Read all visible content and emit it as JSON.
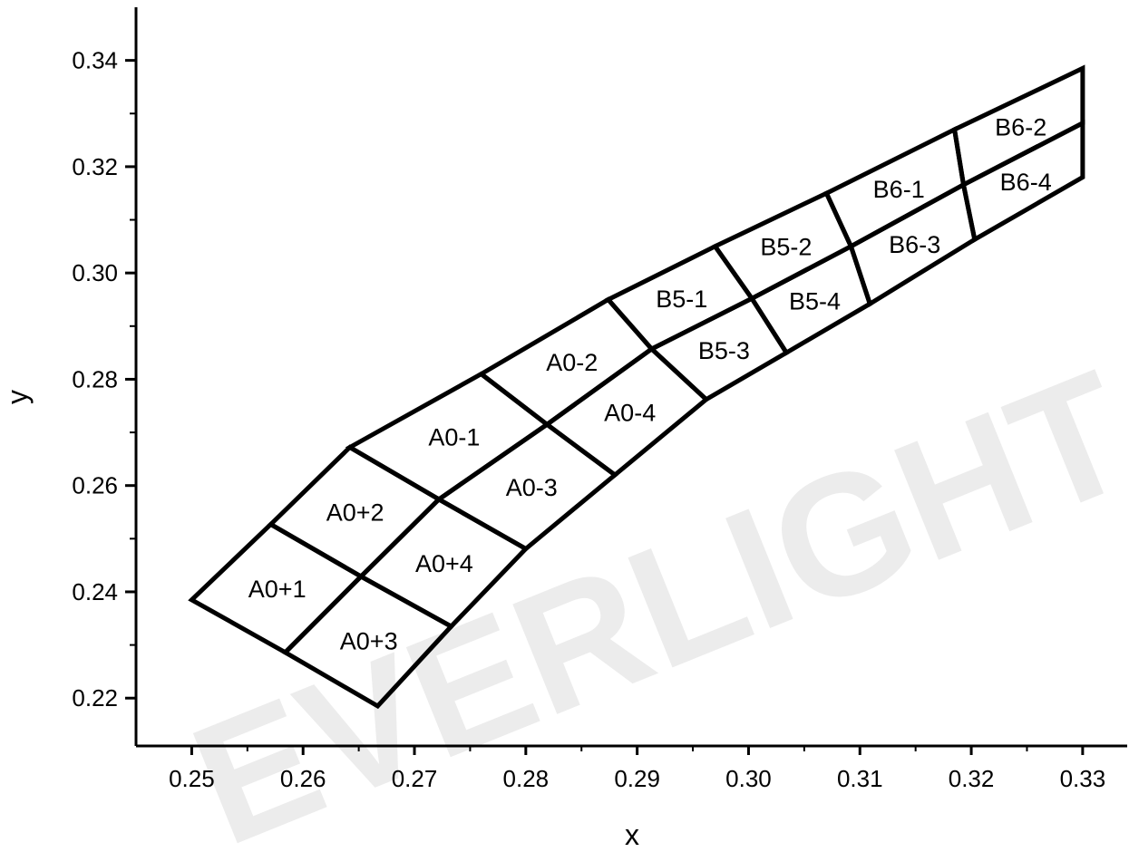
{
  "chart_data": {
    "type": "diagram",
    "xlabel": "x",
    "ylabel": "y",
    "xlim": [
      0.245,
      0.334
    ],
    "ylim": [
      0.211,
      0.35
    ],
    "x_ticks": [
      "0.25",
      "0.26",
      "0.27",
      "0.28",
      "0.29",
      "0.30",
      "0.31",
      "0.32",
      "0.33"
    ],
    "y_ticks": [
      "0.22",
      "0.24",
      "0.26",
      "0.28",
      "0.30",
      "0.32",
      "0.34"
    ],
    "watermark": "EVERLIGHT",
    "regions": [
      {
        "label": "A0+1",
        "corners": [
          [
            0.25,
            0.2385
          ],
          [
            0.2571,
            0.2527
          ],
          [
            0.2652,
            0.2429
          ],
          [
            0.2584,
            0.2286
          ]
        ]
      },
      {
        "label": "A0+2",
        "corners": [
          [
            0.2571,
            0.2527
          ],
          [
            0.2642,
            0.2672
          ],
          [
            0.2722,
            0.2574
          ],
          [
            0.2652,
            0.2429
          ]
        ]
      },
      {
        "label": "A0+3",
        "corners": [
          [
            0.2584,
            0.2286
          ],
          [
            0.2652,
            0.2429
          ],
          [
            0.2733,
            0.2335
          ],
          [
            0.2667,
            0.2185
          ]
        ]
      },
      {
        "label": "A0+4",
        "corners": [
          [
            0.2652,
            0.2429
          ],
          [
            0.2722,
            0.2574
          ],
          [
            0.28,
            0.2481
          ],
          [
            0.2733,
            0.2335
          ]
        ]
      },
      {
        "label": "A0-1",
        "corners": [
          [
            0.2642,
            0.2672
          ],
          [
            0.276,
            0.281
          ],
          [
            0.2819,
            0.2715
          ],
          [
            0.2722,
            0.2574
          ]
        ]
      },
      {
        "label": "A0-2",
        "corners": [
          [
            0.276,
            0.281
          ],
          [
            0.2874,
            0.295
          ],
          [
            0.2913,
            0.2857
          ],
          [
            0.2819,
            0.2715
          ]
        ]
      },
      {
        "label": "A0-3",
        "corners": [
          [
            0.2722,
            0.2574
          ],
          [
            0.2819,
            0.2715
          ],
          [
            0.288,
            0.262
          ],
          [
            0.28,
            0.2481
          ]
        ]
      },
      {
        "label": "A0-4",
        "corners": [
          [
            0.2819,
            0.2715
          ],
          [
            0.2913,
            0.2857
          ],
          [
            0.2962,
            0.2762
          ],
          [
            0.288,
            0.262
          ]
        ]
      },
      {
        "label": "B5-1",
        "corners": [
          [
            0.2874,
            0.295
          ],
          [
            0.297,
            0.305
          ],
          [
            0.3003,
            0.2952
          ],
          [
            0.2913,
            0.2857
          ]
        ]
      },
      {
        "label": "B5-2",
        "corners": [
          [
            0.297,
            0.305
          ],
          [
            0.307,
            0.315
          ],
          [
            0.3092,
            0.305
          ],
          [
            0.3003,
            0.2952
          ]
        ]
      },
      {
        "label": "B5-3",
        "corners": [
          [
            0.2913,
            0.2857
          ],
          [
            0.3003,
            0.2952
          ],
          [
            0.3034,
            0.285
          ],
          [
            0.2962,
            0.2762
          ]
        ]
      },
      {
        "label": "B5-4",
        "corners": [
          [
            0.3003,
            0.2952
          ],
          [
            0.3092,
            0.305
          ],
          [
            0.3109,
            0.2942
          ],
          [
            0.3034,
            0.285
          ]
        ]
      },
      {
        "label": "B6-1",
        "corners": [
          [
            0.307,
            0.315
          ],
          [
            0.3185,
            0.327
          ],
          [
            0.3193,
            0.3166
          ],
          [
            0.3092,
            0.305
          ]
        ]
      },
      {
        "label": "B6-2",
        "corners": [
          [
            0.3185,
            0.327
          ],
          [
            0.33,
            0.3385
          ],
          [
            0.33,
            0.3282
          ],
          [
            0.3193,
            0.3166
          ]
        ]
      },
      {
        "label": "B6-3",
        "corners": [
          [
            0.3092,
            0.305
          ],
          [
            0.3193,
            0.3166
          ],
          [
            0.3203,
            0.3063
          ],
          [
            0.3109,
            0.2942
          ]
        ]
      },
      {
        "label": "B6-4",
        "corners": [
          [
            0.3193,
            0.3166
          ],
          [
            0.33,
            0.3282
          ],
          [
            0.33,
            0.318
          ],
          [
            0.3203,
            0.3063
          ]
        ]
      }
    ]
  }
}
